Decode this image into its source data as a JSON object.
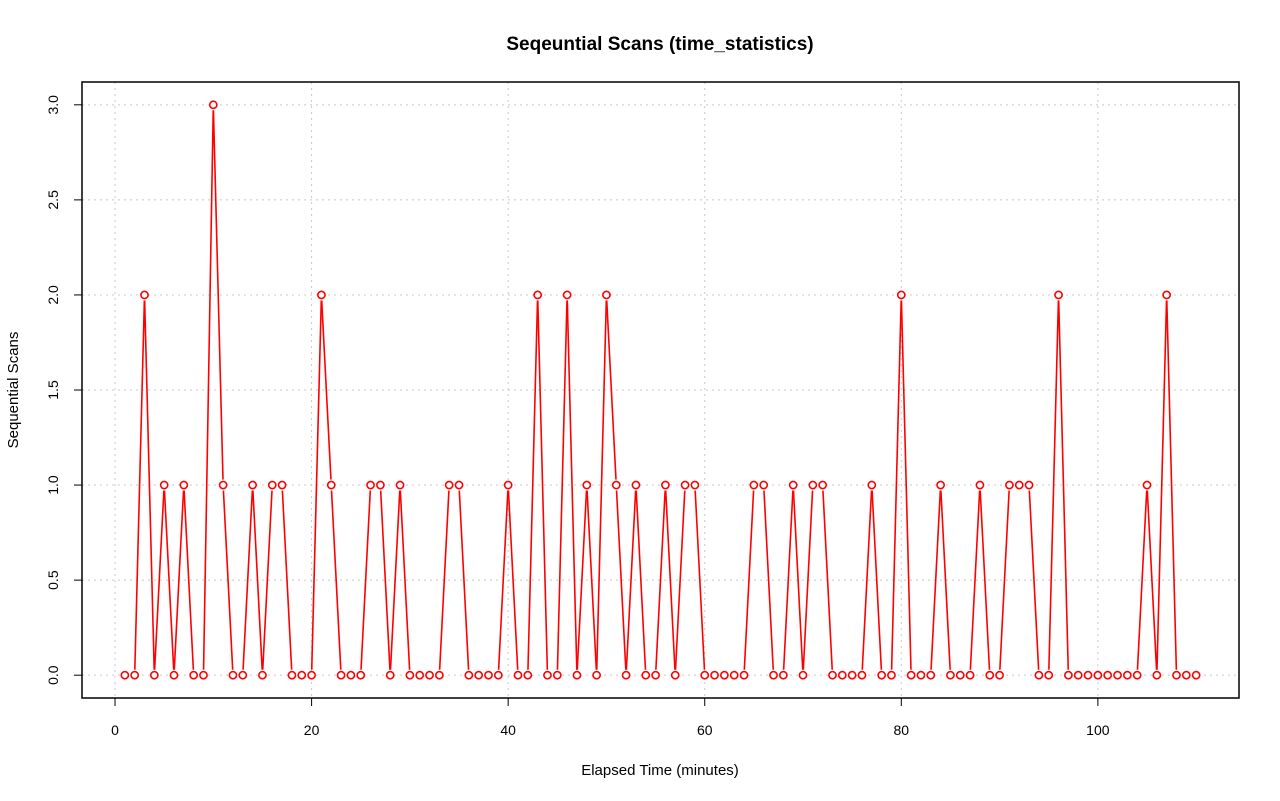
{
  "chart_data": {
    "type": "line",
    "title": "Seqeuntial Scans (time_statistics)",
    "xlabel": "Elapsed Time (minutes)",
    "ylabel": "Sequential Scans",
    "xlim": [
      -3.36,
      114.36
    ],
    "ylim": [
      -0.12,
      3.12
    ],
    "xticks": [
      0,
      20,
      40,
      60,
      80,
      100
    ],
    "yticks": [
      0.0,
      0.5,
      1.0,
      1.5,
      2.0,
      2.5,
      3.0
    ],
    "xtick_labels": [
      "0",
      "20",
      "40",
      "60",
      "80",
      "100"
    ],
    "ytick_labels": [
      "0.0",
      "0.5",
      "1.0",
      "1.5",
      "2.0",
      "2.5",
      "3.0"
    ],
    "grid": true,
    "color": "#ff0000",
    "series": [
      {
        "x": [
          1,
          2,
          3,
          4,
          5,
          6,
          7,
          8,
          9,
          10,
          11,
          12,
          13,
          14,
          15,
          16,
          17,
          18,
          19,
          20,
          21,
          22,
          23,
          24,
          25,
          26,
          27,
          28,
          29,
          30,
          31,
          32,
          33,
          34,
          35,
          36,
          37,
          38,
          39,
          40,
          41,
          42,
          43,
          44,
          45,
          46,
          47,
          48,
          49,
          50,
          51,
          52,
          53,
          54,
          55,
          56,
          57,
          58,
          59,
          60,
          61,
          62,
          63,
          64,
          65,
          66,
          67,
          68,
          69,
          70,
          71,
          72,
          73,
          74,
          75,
          76,
          77,
          78,
          79,
          80,
          81,
          82,
          83,
          84,
          85,
          86,
          87,
          88,
          89,
          90,
          91,
          92,
          93,
          94,
          95,
          96,
          97,
          98,
          99,
          100,
          101,
          102,
          103,
          104,
          105,
          106,
          107,
          108,
          109,
          110
        ],
        "values": [
          0,
          0,
          2,
          0,
          1,
          0,
          1,
          0,
          0,
          3,
          1,
          0,
          0,
          1,
          0,
          1,
          1,
          0,
          0,
          0,
          2,
          1,
          0,
          0,
          0,
          1,
          1,
          0,
          1,
          0,
          0,
          0,
          0,
          1,
          1,
          0,
          0,
          0,
          0,
          1,
          0,
          0,
          2,
          0,
          0,
          2,
          0,
          1,
          0,
          2,
          1,
          0,
          1,
          0,
          0,
          1,
          0,
          1,
          1,
          0,
          0,
          0,
          0,
          0,
          1,
          1,
          0,
          0,
          1,
          0,
          1,
          1,
          0,
          0,
          0,
          0,
          1,
          0,
          0,
          2,
          0,
          0,
          0,
          1,
          0,
          0,
          0,
          1,
          0,
          0,
          1,
          1,
          1,
          0,
          0,
          2,
          0,
          0,
          0,
          0,
          0,
          0,
          0,
          0,
          1,
          0,
          2,
          0,
          0,
          0
        ]
      }
    ]
  }
}
